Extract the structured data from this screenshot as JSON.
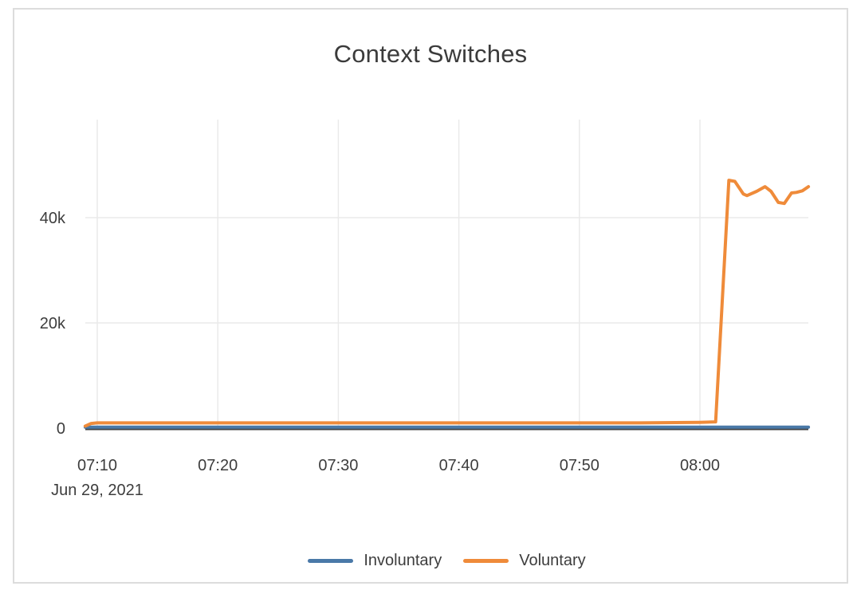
{
  "chart_data": {
    "type": "line",
    "title": "Context Switches",
    "date_label": "Jun 29, 2021",
    "grid": true,
    "legend_position": "bottom",
    "x_axis": {
      "unit": "time (minutes after 07:00, Jun 29 2021)",
      "range_minutes": [
        9,
        69
      ],
      "ticks": [
        {
          "m": 10,
          "label": "07:10"
        },
        {
          "m": 20,
          "label": "07:20"
        },
        {
          "m": 30,
          "label": "07:30"
        },
        {
          "m": 40,
          "label": "07:40"
        },
        {
          "m": 50,
          "label": "07:50"
        },
        {
          "m": 60,
          "label": "08:00"
        }
      ]
    },
    "y_axis": {
      "unit": "context switches",
      "range": [
        0,
        58600
      ],
      "ticks": [
        {
          "v": 0,
          "label": "0"
        },
        {
          "v": 20000,
          "label": "20k"
        },
        {
          "v": 40000,
          "label": "40k"
        }
      ]
    },
    "series": [
      {
        "name": "Involuntary",
        "color": "#4a79a8",
        "points": [
          [
            9,
            200
          ],
          [
            15,
            200
          ],
          [
            20,
            200
          ],
          [
            25,
            200
          ],
          [
            30,
            200
          ],
          [
            35,
            200
          ],
          [
            40,
            200
          ],
          [
            45,
            200
          ],
          [
            50,
            200
          ],
          [
            55,
            200
          ],
          [
            60,
            200
          ],
          [
            65,
            200
          ],
          [
            69,
            200
          ]
        ]
      },
      {
        "name": "Voluntary",
        "color": "#ef8b3a",
        "points": [
          [
            9,
            400
          ],
          [
            9.5,
            900
          ],
          [
            10,
            1000
          ],
          [
            15,
            1000
          ],
          [
            20,
            1000
          ],
          [
            25,
            1000
          ],
          [
            30,
            1000
          ],
          [
            35,
            1000
          ],
          [
            40,
            1000
          ],
          [
            45,
            1000
          ],
          [
            50,
            1000
          ],
          [
            55,
            1000
          ],
          [
            60,
            1100
          ],
          [
            61.3,
            1200
          ],
          [
            62.4,
            47100
          ],
          [
            62.9,
            46900
          ],
          [
            63.6,
            44500
          ],
          [
            63.9,
            44200
          ],
          [
            64.7,
            45000
          ],
          [
            65.4,
            45900
          ],
          [
            65.9,
            45000
          ],
          [
            66.5,
            42900
          ],
          [
            67,
            42700
          ],
          [
            67.6,
            44700
          ],
          [
            68,
            44800
          ],
          [
            68.5,
            45100
          ],
          [
            69,
            45900
          ]
        ]
      }
    ]
  },
  "colors": {
    "background": "#ffffff",
    "card_border": "#dcdcdc",
    "grid": "#eaeaea",
    "zeroline": "#444444",
    "text": "#3d3d3d",
    "involuntary": "#4a79a8",
    "voluntary": "#ef8b3a"
  }
}
